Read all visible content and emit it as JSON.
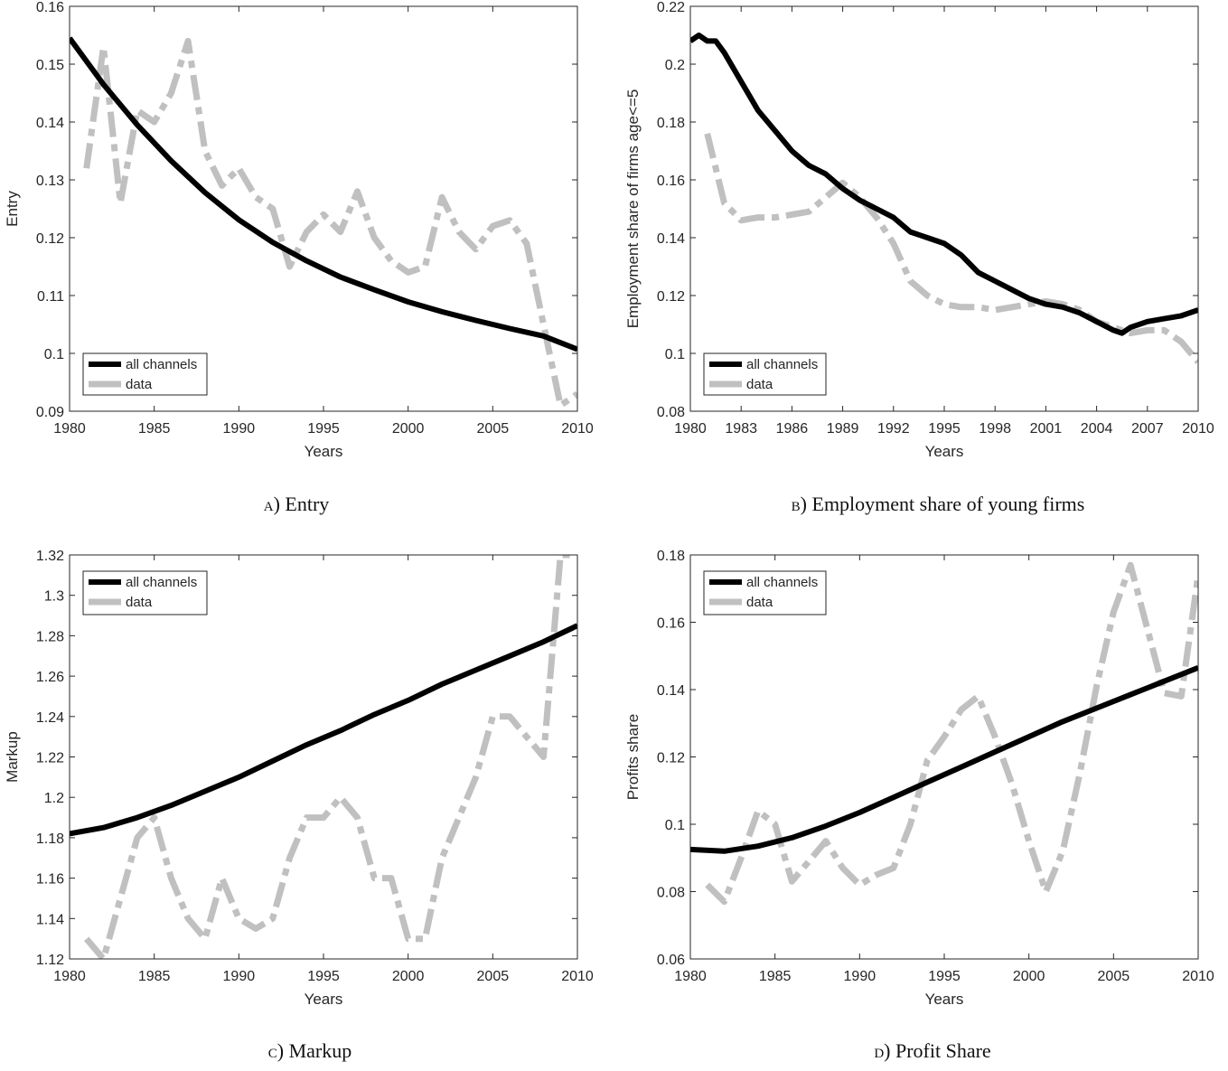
{
  "colors": {
    "model": "#000000",
    "data": "#c0c0c0",
    "axis": "#262626"
  },
  "panels": [
    {
      "id": "entry",
      "caption_letter": "a",
      "caption_text": "Entry",
      "chart_data": {
        "type": "line",
        "title": "",
        "xlabel": "Years",
        "ylabel": "Entry",
        "xlim": [
          1980,
          2010
        ],
        "ylim": [
          0.09,
          0.16
        ],
        "xticks": [
          1980,
          1985,
          1990,
          1995,
          2000,
          2005,
          2010
        ],
        "yticks": [
          0.09,
          0.1,
          0.11,
          0.12,
          0.13,
          0.14,
          0.15,
          0.16
        ],
        "ytick_labels": [
          "0.09",
          "0.1",
          "0.11",
          "0.12",
          "0.13",
          "0.14",
          "0.15",
          "0.16"
        ],
        "grid": false,
        "legend": {
          "placement": "bottom-left",
          "entries": [
            "all channels",
            "data"
          ]
        },
        "series": [
          {
            "name": "all channels",
            "style": "solid",
            "x": [
              1980,
              1982,
              1984,
              1986,
              1988,
              1990,
              1992,
              1994,
              1996,
              1998,
              2000,
              2002,
              2004,
              2006,
              2008,
              2010
            ],
            "y": [
              0.1545,
              0.1465,
              0.1395,
              0.1333,
              0.1278,
              0.1231,
              0.1192,
              0.116,
              0.1132,
              0.111,
              0.1089,
              0.1072,
              0.1057,
              0.1043,
              0.103,
              0.1007
            ]
          },
          {
            "name": "data",
            "style": "dashed",
            "x": [
              1981,
              1982,
              1983,
              1984,
              1985,
              1986,
              1987,
              1988,
              1989,
              1990,
              1991,
              1992,
              1993,
              1994,
              1995,
              1996,
              1997,
              1998,
              1999,
              2000,
              2001,
              2002,
              2003,
              2004,
              2005,
              2006,
              2007,
              2008,
              2009,
              2010
            ],
            "y": [
              0.132,
              0.153,
              0.126,
              0.142,
              0.14,
              0.145,
              0.154,
              0.135,
              0.129,
              0.132,
              0.127,
              0.125,
              0.115,
              0.121,
              0.124,
              0.121,
              0.128,
              0.12,
              0.116,
              0.114,
              0.115,
              0.127,
              0.121,
              0.118,
              0.122,
              0.123,
              0.119,
              0.105,
              0.091,
              0.093
            ]
          }
        ]
      }
    },
    {
      "id": "young-firms",
      "caption_letter": "b",
      "caption_text": "Employment share of young firms",
      "chart_data": {
        "type": "line",
        "title": "",
        "xlabel": "Years",
        "ylabel": "Employment share of firms age<=5",
        "xlim": [
          1980,
          2010
        ],
        "ylim": [
          0.08,
          0.22
        ],
        "xticks": [
          1980,
          1983,
          1986,
          1989,
          1992,
          1995,
          1998,
          2001,
          2004,
          2007,
          2010
        ],
        "yticks": [
          0.08,
          0.1,
          0.12,
          0.14,
          0.16,
          0.18,
          0.2,
          0.22
        ],
        "ytick_labels": [
          "0.08",
          "0.1",
          "0.12",
          "0.14",
          "0.16",
          "0.18",
          "0.2",
          "0.22"
        ],
        "grid": false,
        "legend": {
          "placement": "bottom-left",
          "entries": [
            "all channels",
            "data"
          ]
        },
        "series": [
          {
            "name": "all channels",
            "style": "solid",
            "x": [
              1980,
              1980.5,
              1981,
              1981.5,
              1982,
              1983,
              1984,
              1985,
              1986,
              1987,
              1988,
              1989,
              1990,
              1991,
              1992,
              1993,
              1994,
              1995,
              1996,
              1997,
              1998,
              1999,
              2000,
              2001,
              2002,
              2003,
              2004,
              2005,
              2005.5,
              2006,
              2007,
              2008,
              2009,
              2010
            ],
            "y": [
              0.208,
              0.21,
              0.208,
              0.208,
              0.204,
              0.194,
              0.184,
              0.177,
              0.17,
              0.165,
              0.162,
              0.157,
              0.153,
              0.15,
              0.147,
              0.142,
              0.14,
              0.138,
              0.134,
              0.128,
              0.125,
              0.122,
              0.119,
              0.117,
              0.116,
              0.114,
              0.111,
              0.108,
              0.107,
              0.109,
              0.111,
              0.112,
              0.113,
              0.115
            ]
          },
          {
            "name": "data",
            "style": "dashed",
            "x": [
              1981,
              1982,
              1983,
              1984,
              1985,
              1986,
              1987,
              1988,
              1989,
              1990,
              1991,
              1992,
              1993,
              1994,
              1995,
              1996,
              1997,
              1998,
              1999,
              2000,
              2001,
              2002,
              2003,
              2004,
              2005,
              2006,
              2007,
              2008,
              2009,
              2010
            ],
            "y": [
              0.176,
              0.152,
              0.146,
              0.147,
              0.147,
              0.148,
              0.149,
              0.154,
              0.159,
              0.154,
              0.147,
              0.138,
              0.125,
              0.12,
              0.117,
              0.116,
              0.116,
              0.115,
              0.116,
              0.117,
              0.118,
              0.117,
              0.115,
              0.111,
              0.109,
              0.107,
              0.108,
              0.108,
              0.104,
              0.097
            ]
          }
        ]
      }
    },
    {
      "id": "markup",
      "caption_letter": "c",
      "caption_text": "Markup",
      "chart_data": {
        "type": "line",
        "title": "",
        "xlabel": "Years",
        "ylabel": "Markup",
        "xlim": [
          1980,
          2010
        ],
        "ylim": [
          1.12,
          1.32
        ],
        "xticks": [
          1980,
          1985,
          1990,
          1995,
          2000,
          2005,
          2010
        ],
        "yticks": [
          1.12,
          1.14,
          1.16,
          1.18,
          1.2,
          1.22,
          1.24,
          1.26,
          1.28,
          1.3,
          1.32
        ],
        "ytick_labels": [
          "1.12",
          "1.14",
          "1.16",
          "1.18",
          "1.2",
          "1.22",
          "1.24",
          "1.26",
          "1.28",
          "1.3",
          "1.32"
        ],
        "grid": false,
        "legend": {
          "placement": "top-left",
          "entries": [
            "all channels",
            "data"
          ]
        },
        "series": [
          {
            "name": "all channels",
            "style": "solid",
            "x": [
              1980,
              1982,
              1984,
              1986,
              1988,
              1990,
              1992,
              1994,
              1996,
              1998,
              2000,
              2002,
              2004,
              2006,
              2008,
              2010
            ],
            "y": [
              1.182,
              1.185,
              1.19,
              1.196,
              1.203,
              1.21,
              1.218,
              1.226,
              1.233,
              1.241,
              1.248,
              1.256,
              1.263,
              1.27,
              1.277,
              1.285
            ]
          },
          {
            "name": "data",
            "style": "dashed",
            "x": [
              1981,
              1982,
              1983,
              1984,
              1985,
              1986,
              1987,
              1988,
              1989,
              1990,
              1991,
              1992,
              1993,
              1994,
              1995,
              1996,
              1997,
              1998,
              1999,
              2000,
              2001,
              2002,
              2003,
              2004,
              2005,
              2006,
              2007,
              2008,
              2009,
              2010
            ],
            "y": [
              1.13,
              1.12,
              1.15,
              1.18,
              1.19,
              1.16,
              1.14,
              1.13,
              1.16,
              1.14,
              1.135,
              1.14,
              1.17,
              1.19,
              1.19,
              1.2,
              1.19,
              1.16,
              1.16,
              1.13,
              1.13,
              1.17,
              1.19,
              1.21,
              1.24,
              1.24,
              1.23,
              1.22,
              1.32,
              1.32
            ]
          }
        ]
      }
    },
    {
      "id": "profit-share",
      "caption_letter": "d",
      "caption_text": "Profit Share",
      "chart_data": {
        "type": "line",
        "title": "",
        "xlabel": "Years",
        "ylabel": "Profits share",
        "xlim": [
          1980,
          2010
        ],
        "ylim": [
          0.06,
          0.18
        ],
        "xticks": [
          1980,
          1985,
          1990,
          1995,
          2000,
          2005,
          2010
        ],
        "yticks": [
          0.06,
          0.08,
          0.1,
          0.12,
          0.14,
          0.16,
          0.18
        ],
        "ytick_labels": [
          "0.06",
          "0.08",
          "0.1",
          "0.12",
          "0.14",
          "0.16",
          "0.18"
        ],
        "grid": false,
        "legend": {
          "placement": "top-left",
          "entries": [
            "all channels",
            "data"
          ]
        },
        "series": [
          {
            "name": "all channels",
            "style": "solid",
            "x": [
              1980,
              1982,
              1984,
              1986,
              1988,
              1990,
              1992,
              1994,
              1996,
              1998,
              2000,
              2002,
              2004,
              2006,
              2008,
              2010
            ],
            "y": [
              0.0925,
              0.092,
              0.0935,
              0.096,
              0.0995,
              0.1035,
              0.108,
              0.1125,
              0.117,
              0.1215,
              0.126,
              0.1305,
              0.1345,
              0.1385,
              0.1425,
              0.1465
            ]
          },
          {
            "name": "data",
            "style": "dashed",
            "x": [
              1981,
              1982,
              1983,
              1984,
              1985,
              1986,
              1987,
              1988,
              1989,
              1990,
              1991,
              1992,
              1993,
              1994,
              1995,
              1996,
              1997,
              1998,
              1999,
              2000,
              2001,
              2002,
              2003,
              2004,
              2005,
              2006,
              2007,
              2008,
              2009,
              2010
            ],
            "y": [
              0.082,
              0.077,
              0.09,
              0.104,
              0.1,
              0.083,
              0.089,
              0.095,
              0.087,
              0.082,
              0.085,
              0.087,
              0.1,
              0.119,
              0.126,
              0.134,
              0.138,
              0.126,
              0.112,
              0.095,
              0.08,
              0.092,
              0.115,
              0.141,
              0.163,
              0.177,
              0.158,
              0.139,
              0.138,
              0.174
            ]
          }
        ]
      }
    }
  ]
}
